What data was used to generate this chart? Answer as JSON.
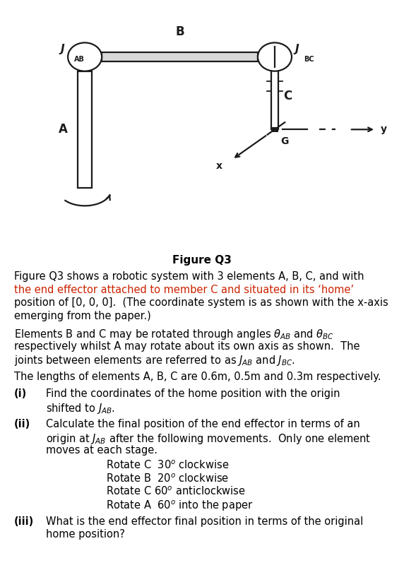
{
  "fig_width": 5.72,
  "fig_height": 8.24,
  "bg_color": "#ffffff",
  "figure_label": "Figure Q3",
  "dark": "#1a1a1a",
  "gray_fill": "#d8d8d8",
  "white_fill": "#ffffff",
  "lw": 1.6,
  "para1_line1": "Figure Q3 shows a robotic system with 3 elements A, B, C, and with",
  "para1_line2": "the end effector attached to member C and situated in its ‘home’",
  "para1_line3": "position of [0, 0, 0].  (The coordinate system is as shown with the x-axis",
  "para1_line4": "emerging from the paper.)",
  "para2_line1": "Elements B and C may be rotated through angles θ",
  "para2_line2": "respectively whilst A may rotate about its own axis as shown.  The",
  "para2_line3": "joints between elements are referred to as J",
  "para3": "The lengths of elements A, B, C are 0.6m, 0.5m and 0.3m respectively.",
  "qi_label": "(i)",
  "qi_line1": "Find the coordinates of the home position with the origin",
  "qi_line2": "shifted to J",
  "qii_label": "(ii)",
  "qii_line1": "Calculate the final position of the end effector in terms of an",
  "qii_line2": "origin at J",
  "qii_line2b": " after the following movements.  Only one element",
  "qii_line3": "moves at each stage.",
  "mv1": "Rotate C  30",
  "mv2": "Rotate B  20",
  "mv3": "Rotate C 60",
  "mv4": "Rotate A  60",
  "qiii_label": "(iii)",
  "qiii_line1": "What is the end effector final position in terms of the original",
  "qiii_line2": "home position?"
}
